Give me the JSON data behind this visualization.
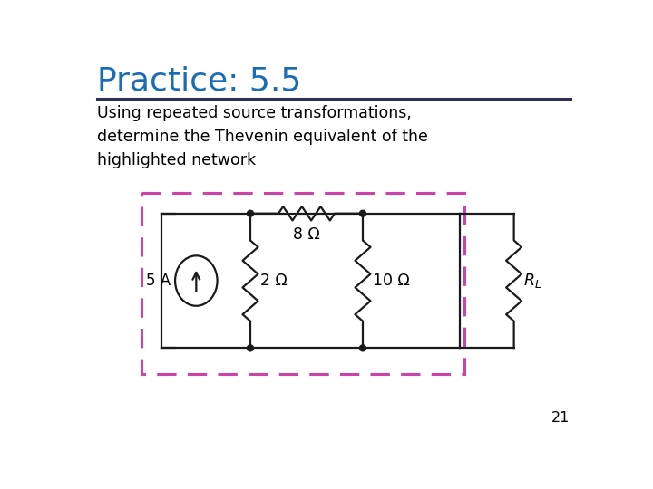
{
  "title": "Practice: 5.5",
  "title_color": "#1a6db5",
  "title_fontsize": 26,
  "subtitle": "Using repeated source transformations,\ndetermine the Thevenin equivalent of the\nhighlighted network",
  "subtitle_fontsize": 12.5,
  "line_color": "#1a1a1a",
  "dashed_box_color": "#cc44aa",
  "page_number": "21",
  "bg_color": "#ffffff",
  "resistor_label_8": "8 Ω",
  "resistor_label_2": "2 Ω",
  "resistor_label_10": "10 Ω",
  "resistor_label_RL": "$R_L$",
  "current_label": "5 A",
  "separator_color": "#2d3050"
}
